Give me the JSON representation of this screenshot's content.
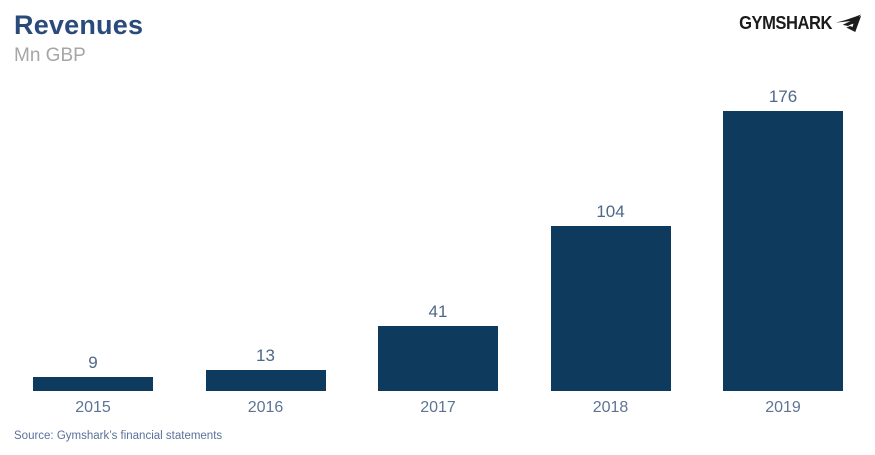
{
  "header": {
    "title": "Revenues",
    "subtitle": "Mn GBP"
  },
  "logo": {
    "text": "GYMSHARK",
    "icon": "shark-icon",
    "color": "#1b1b1b"
  },
  "chart_data": {
    "type": "bar",
    "categories": [
      "2015",
      "2016",
      "2017",
      "2018",
      "2019"
    ],
    "values": [
      9,
      13,
      41,
      104,
      176
    ],
    "title": "Revenues",
    "xlabel": "",
    "ylabel": "Mn GBP",
    "ylim": [
      0,
      176
    ],
    "grid": false,
    "legend": false,
    "bar_color": "#0e3a5e",
    "value_label_color": "#4f6788",
    "axis_label_color": "#5e7494"
  },
  "footer": {
    "source": "Source: Gymshark’s financial statements"
  }
}
